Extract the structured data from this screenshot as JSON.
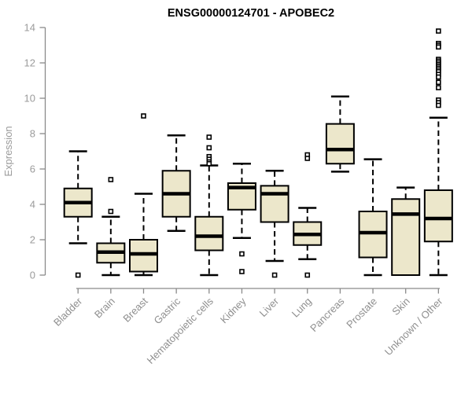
{
  "chart_data": {
    "type": "boxplot",
    "title": "ENSG00000124701 - APOBEC2",
    "ylabel": "Expression",
    "xlabel": "",
    "ylim": [
      0,
      14
    ],
    "yticks": [
      0,
      2,
      4,
      6,
      8,
      10,
      12,
      14
    ],
    "grid": false,
    "legend": "none",
    "categories": [
      "Bladder",
      "Brain",
      "Breast",
      "Gastric",
      "Hematopoietic cells",
      "Kidney",
      "Liver",
      "Lung",
      "Pancreas",
      "Prostate",
      "Skin",
      "Unknown / Other"
    ],
    "series": [
      {
        "name": "Bladder",
        "whisker_low": 1.8,
        "q1": 3.3,
        "median": 4.1,
        "q3": 4.9,
        "whisker_high": 7.0,
        "outliers": [
          0
        ]
      },
      {
        "name": "Brain",
        "whisker_low": 0,
        "q1": 0.7,
        "median": 1.3,
        "q3": 1.8,
        "whisker_high": 3.3,
        "outliers": [
          5.4,
          3.6
        ]
      },
      {
        "name": "Breast",
        "whisker_low": 0,
        "q1": 0.2,
        "median": 1.2,
        "q3": 2.0,
        "whisker_high": 4.6,
        "outliers": [
          9.0
        ]
      },
      {
        "name": "Gastric",
        "whisker_low": 2.5,
        "q1": 3.3,
        "median": 4.6,
        "q3": 5.9,
        "whisker_high": 7.9,
        "outliers": []
      },
      {
        "name": "Hematopoietic cells",
        "whisker_low": 0,
        "q1": 1.4,
        "median": 2.2,
        "q3": 3.3,
        "whisker_high": 6.2,
        "outliers": [
          7.8,
          7.2,
          6.7,
          6.55,
          6.4,
          6.3
        ]
      },
      {
        "name": "Kidney",
        "whisker_low": 2.1,
        "q1": 3.7,
        "median": 4.95,
        "q3": 5.2,
        "whisker_high": 6.3,
        "outliers": [
          1.2,
          0.2
        ]
      },
      {
        "name": "Liver",
        "whisker_low": 0.8,
        "q1": 3.0,
        "median": 4.6,
        "q3": 5.05,
        "whisker_high": 5.9,
        "outliers": [
          0
        ]
      },
      {
        "name": "Lung",
        "whisker_low": 0.9,
        "q1": 1.7,
        "median": 2.3,
        "q3": 3.0,
        "whisker_high": 3.8,
        "outliers": [
          6.8,
          6.6,
          0
        ]
      },
      {
        "name": "Pancreas",
        "whisker_low": 5.85,
        "q1": 6.3,
        "median": 7.1,
        "q3": 8.55,
        "whisker_high": 10.1,
        "outliers": []
      },
      {
        "name": "Prostate",
        "whisker_low": 0,
        "q1": 1.0,
        "median": 2.4,
        "q3": 3.6,
        "whisker_high": 6.55,
        "outliers": []
      },
      {
        "name": "Skin",
        "whisker_low": 0,
        "q1": 0,
        "median": 3.45,
        "q3": 4.3,
        "whisker_high": 4.95,
        "outliers": []
      },
      {
        "name": "Unknown / Other",
        "whisker_low": 0,
        "q1": 1.9,
        "median": 3.2,
        "q3": 4.8,
        "whisker_high": 8.9,
        "outliers": [
          13.8,
          13.1,
          13.0,
          12.9,
          12.2,
          12.1,
          12.0,
          11.9,
          11.8,
          11.7,
          11.6,
          11.5,
          11.35,
          11.2,
          10.9,
          10.6,
          9.9,
          9.75,
          9.6
        ]
      }
    ],
    "colors": {
      "box_fill": "#ECE7CB",
      "box_border": "#000000",
      "median": "#000000",
      "outlier_fill": "#FFFFFF",
      "axis": "#8a8a8a",
      "axis_text": "#9b9b9b",
      "title": "#000000",
      "background": "#FFFFFF"
    }
  }
}
